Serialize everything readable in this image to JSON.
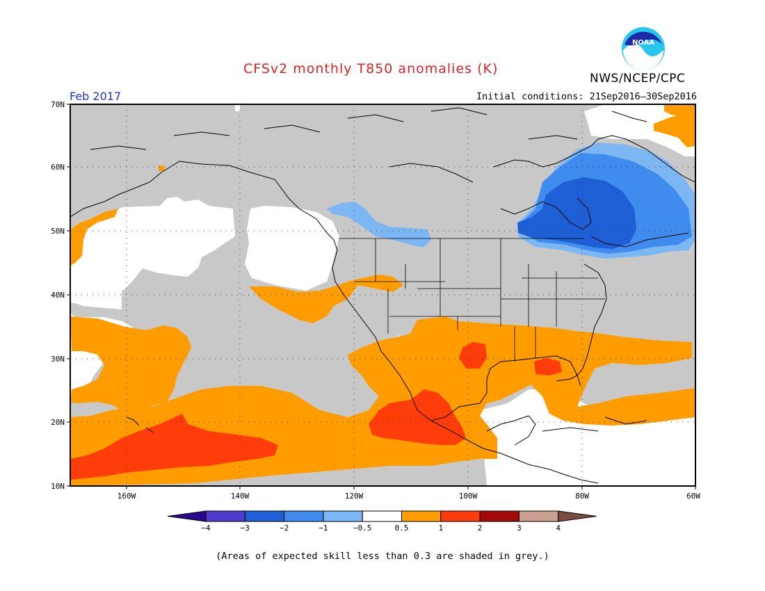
{
  "header": {
    "title": "CFSv2 monthly T850 anomalies (K)",
    "agency": "NWS/NCEP/CPC",
    "month": "Feb 2017",
    "initial_conditions": "Initial conditions: 21Sep2016–30Sep2016",
    "logo_text": "NOAA"
  },
  "map": {
    "lat_labels": [
      "70N",
      "60N",
      "50N",
      "40N",
      "30N",
      "20N",
      "10N"
    ],
    "lon_labels": [
      "160W",
      "140W",
      "120W",
      "100W",
      "80W",
      "60W"
    ],
    "lat_range": [
      10,
      70
    ],
    "lon_range": [
      -170,
      -60
    ],
    "skill_mask_color": "#c8c8c8",
    "regions": [
      {
        "name": "north-pacific-near-normal",
        "category": "-0.5 to 0.5"
      },
      {
        "name": "west-coast-near-normal",
        "category": "-0.5 to 0.5"
      },
      {
        "name": "northwest-below-normal",
        "category": "-1 to -0.5"
      },
      {
        "name": "eastern-canada-cold",
        "category": "-3 to -1"
      },
      {
        "name": "southern-us-warm",
        "category": "0.5 to 1"
      },
      {
        "name": "mexico-warm-core",
        "category": "1 to 2"
      },
      {
        "name": "tropical-pacific-warm",
        "category": "1 to 2"
      },
      {
        "name": "subtropical-atlantic-warm",
        "category": "0.5 to 1"
      }
    ]
  },
  "colorbar": {
    "labels": [
      "−4",
      "−3",
      "−2",
      "−1",
      "−0.5",
      "0.5",
      "1",
      "2",
      "3",
      "4"
    ],
    "colors": [
      "#2a0a8c",
      "#4f3ccc",
      "#1f5fd6",
      "#3f8cee",
      "#7cb7f3",
      "#ffffff",
      "#ff9c00",
      "#ff3d0a",
      "#a50a0a",
      "#c9a08e",
      "#7a4c3f"
    ]
  },
  "footnote": "(Areas of expected skill less than 0.3 are shaded in grey.)"
}
